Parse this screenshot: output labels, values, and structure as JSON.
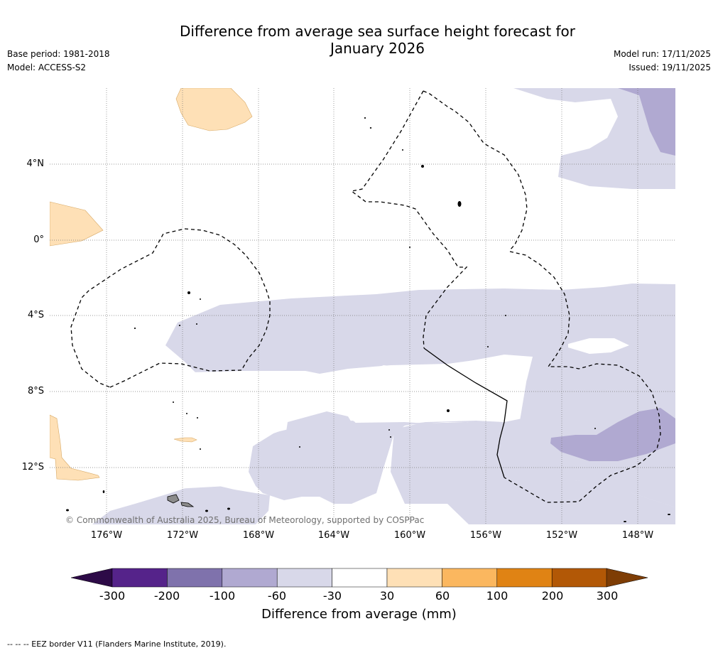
{
  "title": {
    "line1": "Difference from average sea surface height forecast for",
    "line2": "January 2026"
  },
  "meta": {
    "base_period": "Base period: 1981-2018",
    "model": "Model: ACCESS-S2",
    "model_run": "Model run: 17/11/2025",
    "issued": "Issued: 19/11/2025"
  },
  "axes": {
    "lat_labels": [
      "4°N",
      "0°",
      "4°S",
      "8°S",
      "12°S"
    ],
    "lon_labels": [
      "176°W",
      "172°W",
      "168°W",
      "164°W",
      "160°W",
      "156°W",
      "152°W",
      "148°W"
    ]
  },
  "copyright": "© Commonwealth of Australia 2025, Bureau of Meteorology, supported by COSPPac",
  "colorbar": {
    "label": "Difference from average (mm)",
    "ticks": [
      "-300",
      "-200",
      "-100",
      "-60",
      "-30",
      "30",
      "60",
      "100",
      "200",
      "300"
    ],
    "colors": {
      "below": "#2d0a47",
      "bins": [
        "#55238a",
        "#7f72ac",
        "#b0a9d1",
        "#d8d8e9",
        "#ffffff",
        "#fee0b6",
        "#fbb75f",
        "#e08314",
        "#b25806"
      ],
      "above": "#7e3d05"
    }
  },
  "map_colors": {
    "land_gray": "#8c8c8c",
    "eez_line": "#000000",
    "grid": "#777777"
  },
  "footer": "--  --  -- EEZ border V11 (Flanders Marine Institute, 2019)."
}
